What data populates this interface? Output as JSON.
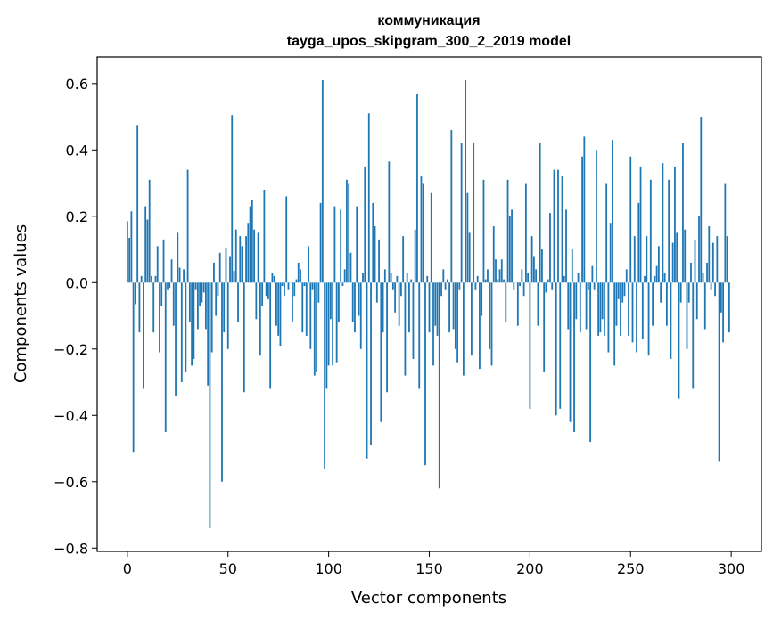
{
  "chart_data": {
    "type": "bar",
    "title": "коммуникация",
    "subtitle": "tayga_upos_skipgram_300_2_2019 model",
    "xlabel": "Vector components",
    "ylabel": "Components values",
    "xlim": [
      -15,
      315
    ],
    "ylim": [
      -0.81,
      0.68
    ],
    "xticks": [
      0,
      50,
      100,
      150,
      200,
      250,
      300
    ],
    "yticks": [
      -0.8,
      -0.6,
      -0.4,
      -0.2,
      0.0,
      0.2,
      0.4,
      0.6
    ],
    "ytick_labels": [
      "−0.8",
      "−0.6",
      "−0.4",
      "−0.2",
      "0.0",
      "0.2",
      "0.4",
      "0.6"
    ],
    "bar_color": "#1f77b4",
    "series": [
      {
        "name": "коммуникация",
        "values": [
          0.185,
          0.135,
          0.215,
          -0.51,
          -0.065,
          0.475,
          -0.15,
          0.02,
          -0.32,
          0.23,
          0.19,
          0.31,
          0.02,
          -0.15,
          0.02,
          0.11,
          -0.21,
          -0.07,
          0.13,
          -0.45,
          -0.02,
          -0.015,
          0.07,
          -0.13,
          -0.34,
          0.15,
          0.045,
          -0.3,
          0.04,
          -0.27,
          0.34,
          -0.12,
          -0.25,
          -0.23,
          -0.02,
          -0.14,
          -0.07,
          -0.06,
          -0.03,
          -0.14,
          -0.31,
          -0.74,
          -0.21,
          0.06,
          -0.1,
          -0.04,
          0.09,
          -0.6,
          -0.15,
          0.105,
          -0.2,
          0.08,
          0.505,
          0.035,
          0.16,
          -0.12,
          0.14,
          0.11,
          -0.33,
          0.14,
          0.18,
          0.23,
          0.25,
          0.16,
          -0.11,
          0.15,
          -0.22,
          -0.07,
          0.28,
          -0.04,
          -0.05,
          -0.32,
          0.03,
          0.02,
          -0.13,
          -0.16,
          -0.19,
          -0.01,
          -0.04,
          0.26,
          -0.02,
          0.0,
          -0.12,
          -0.04,
          0.01,
          0.06,
          0.04,
          -0.15,
          -0.01,
          -0.16,
          0.11,
          -0.2,
          -0.02,
          -0.28,
          -0.27,
          -0.06,
          0.24,
          0.61,
          -0.56,
          -0.32,
          -0.25,
          -0.11,
          -0.25,
          0.23,
          -0.24,
          -0.12,
          0.22,
          -0.01,
          0.04,
          0.31,
          0.3,
          0.09,
          -0.12,
          -0.15,
          0.23,
          -0.1,
          -0.2,
          0.03,
          0.35,
          -0.53,
          0.51,
          -0.49,
          0.24,
          0.17,
          -0.06,
          0.13,
          -0.42,
          -0.15,
          0.04,
          -0.33,
          0.365,
          0.03,
          -0.02,
          -0.09,
          0.02,
          -0.13,
          -0.04,
          0.14,
          -0.28,
          0.03,
          -0.15,
          0.01,
          -0.23,
          0.16,
          0.57,
          -0.32,
          0.32,
          0.3,
          -0.55,
          0.02,
          -0.15,
          0.27,
          -0.25,
          -0.13,
          -0.16,
          -0.62,
          -0.04,
          0.04,
          -0.02,
          0.01,
          -0.15,
          0.46,
          -0.14,
          -0.2,
          -0.24,
          -0.02,
          0.42,
          -0.28,
          0.61,
          0.27,
          0.15,
          -0.22,
          0.42,
          -0.02,
          0.02,
          -0.26,
          -0.1,
          0.31,
          0.01,
          0.04,
          -0.2,
          -0.25,
          0.17,
          0.07,
          0.01,
          0.04,
          0.07,
          0.01,
          -0.12,
          0.31,
          0.2,
          0.22,
          -0.02,
          0.0,
          -0.13,
          -0.01,
          0.04,
          -0.04,
          0.3,
          0.03,
          -0.38,
          0.14,
          0.08,
          0.04,
          -0.13,
          0.42,
          0.1,
          -0.27,
          -0.03,
          0.01,
          0.21,
          -0.02,
          0.34,
          -0.4,
          0.34,
          -0.38,
          0.32,
          0.02,
          0.22,
          -0.14,
          -0.42,
          0.1,
          -0.45,
          -0.11,
          0.03,
          -0.15,
          0.38,
          0.44,
          -0.14,
          -0.02,
          -0.48,
          0.05,
          -0.02,
          0.4,
          -0.16,
          -0.15,
          -0.11,
          -0.16,
          0.3,
          -0.21,
          0.18,
          0.43,
          -0.25,
          -0.13,
          -0.05,
          -0.16,
          -0.06,
          -0.04,
          0.04,
          -0.16,
          0.38,
          -0.18,
          0.14,
          -0.21,
          0.24,
          0.35,
          -0.17,
          0.02,
          0.14,
          -0.22,
          0.31,
          -0.13,
          0.02,
          0.05,
          0.11,
          -0.06,
          0.36,
          0.03,
          -0.13,
          0.31,
          -0.23,
          0.12,
          0.35,
          0.15,
          -0.35,
          -0.06,
          0.42,
          0.16,
          -0.2,
          -0.06,
          0.06,
          -0.32,
          0.13,
          -0.11,
          0.2,
          0.5,
          0.03,
          -0.14,
          0.06,
          0.17,
          -0.02,
          0.12,
          -0.04,
          0.14,
          -0.54,
          -0.09,
          -0.18,
          0.3,
          0.14,
          -0.15
        ]
      }
    ]
  }
}
